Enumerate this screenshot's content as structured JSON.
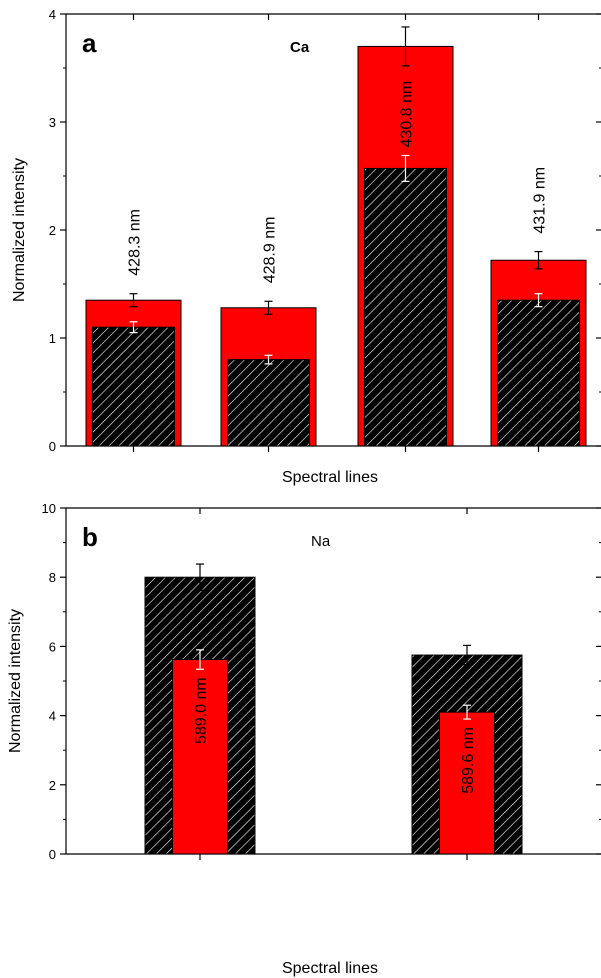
{
  "colors": {
    "red": "#ff0000",
    "black": "#000000",
    "hatch": "#ffffff"
  },
  "chart_data": [
    {
      "type": "bar",
      "panel_label": "a",
      "element_label": "Ca",
      "element_label_bold": true,
      "xlabel": "Spectral lines",
      "ylabel": "Normalized intensity",
      "ylim": [
        0,
        4
      ],
      "yticks": [
        "0",
        "1",
        "2",
        "3",
        "4"
      ],
      "categories": [
        "428.3 nm",
        "428.9 nm",
        "430.8 nm",
        "431.9 nm"
      ],
      "label_position": "above",
      "series": [
        {
          "style": "red",
          "values": [
            1.35,
            1.28,
            3.7,
            1.72
          ],
          "errors": [
            0.06,
            0.06,
            0.18,
            0.08
          ]
        },
        {
          "style": "hatched",
          "values": [
            1.1,
            0.8,
            2.57,
            1.35
          ],
          "errors": [
            0.05,
            0.04,
            0.12,
            0.06
          ]
        }
      ]
    },
    {
      "type": "bar",
      "panel_label": "b",
      "element_label": "Na",
      "element_label_bold": false,
      "xlabel": "Spectral lines",
      "ylabel": "Normalized intensity",
      "ylim": [
        0,
        10
      ],
      "yticks": [
        "0",
        "2",
        "4",
        "6",
        "8",
        "10"
      ],
      "categories": [
        "589.0 nm",
        "589.6 nm"
      ],
      "label_position": "inside",
      "series": [
        {
          "style": "hatched",
          "values": [
            8.0,
            5.75
          ],
          "errors": [
            0.38,
            0.28
          ]
        },
        {
          "style": "red",
          "values": [
            5.62,
            4.1
          ],
          "errors": [
            0.28,
            0.2
          ]
        }
      ]
    }
  ]
}
